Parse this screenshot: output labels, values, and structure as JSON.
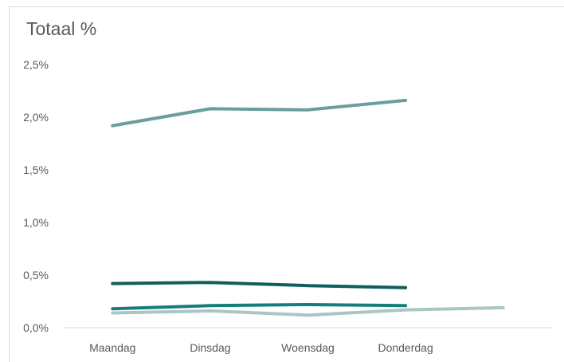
{
  "chart_data": {
    "type": "line",
    "title": "Totaal %",
    "xlabel": "",
    "ylabel": "",
    "categories": [
      "Maandag",
      "Dinsdag",
      "Woensdag",
      "Donderdag",
      ""
    ],
    "y_ticks": [
      "0,0%",
      "0,5%",
      "1,0%",
      "1,5%",
      "2,0%",
      "2,5%"
    ],
    "ylim": [
      0,
      2.5
    ],
    "grid": false,
    "legend": "none",
    "series": [
      {
        "color": "#6a9e9a",
        "values": [
          1.92,
          2.08,
          2.07,
          2.16,
          null
        ]
      },
      {
        "color": "#0f5f5f",
        "values": [
          0.42,
          0.43,
          0.4,
          0.38,
          null
        ]
      },
      {
        "color": "#167e7a",
        "values": [
          0.18,
          0.21,
          0.22,
          0.21,
          null
        ]
      },
      {
        "color": "#a9c6c4",
        "values": [
          0.14,
          0.16,
          0.12,
          0.17,
          0.19
        ]
      }
    ]
  }
}
